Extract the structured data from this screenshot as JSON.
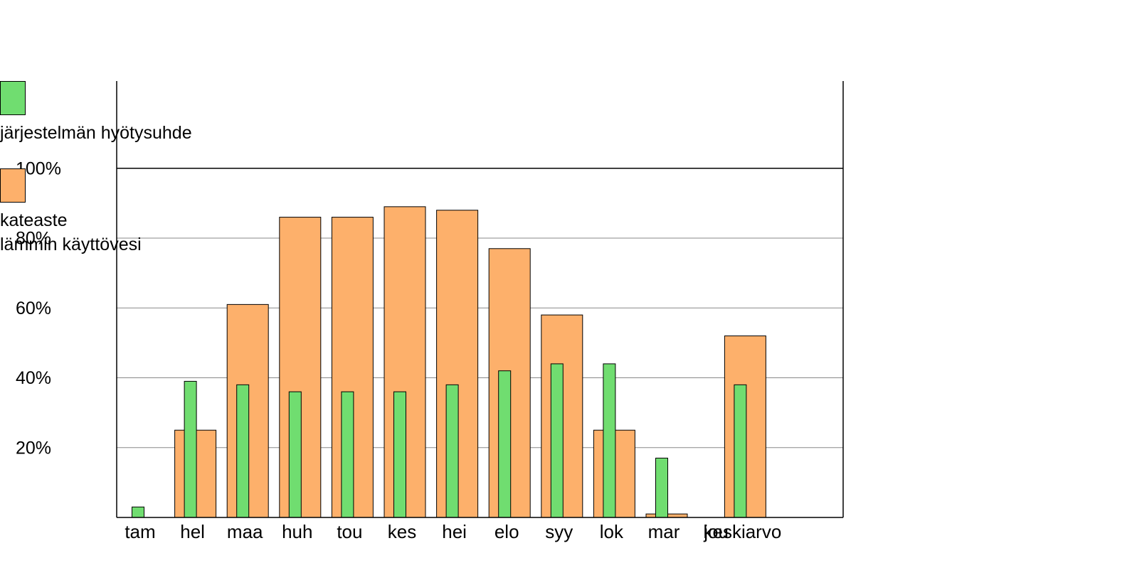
{
  "chart_data": {
    "type": "bar",
    "categories": [
      "tam",
      "hel",
      "maa",
      "huh",
      "tou",
      "kes",
      "hei",
      "elo",
      "syy",
      "lok",
      "mar",
      "jou",
      "keskiarvo"
    ],
    "series": [
      {
        "name": "järjestelmän hyötysuhde",
        "color": "#70dd70",
        "values": [
          3,
          39,
          38,
          36,
          36,
          36,
          38,
          42,
          44,
          44,
          17,
          0,
          38
        ]
      },
      {
        "name": "kateaste\nlämmin käyttövesi",
        "color": "#fdb06b",
        "values": [
          0,
          25,
          61,
          86,
          86,
          89,
          88,
          77,
          58,
          25,
          1,
          0,
          52
        ]
      }
    ],
    "ylim": [
      0,
      125
    ],
    "yticks": [
      {
        "value": 20,
        "label": "20%"
      },
      {
        "value": 40,
        "label": "40%"
      },
      {
        "value": 60,
        "label": "60%"
      },
      {
        "value": 80,
        "label": "80%"
      },
      {
        "value": 100,
        "label": "100%"
      }
    ],
    "grid": true
  }
}
